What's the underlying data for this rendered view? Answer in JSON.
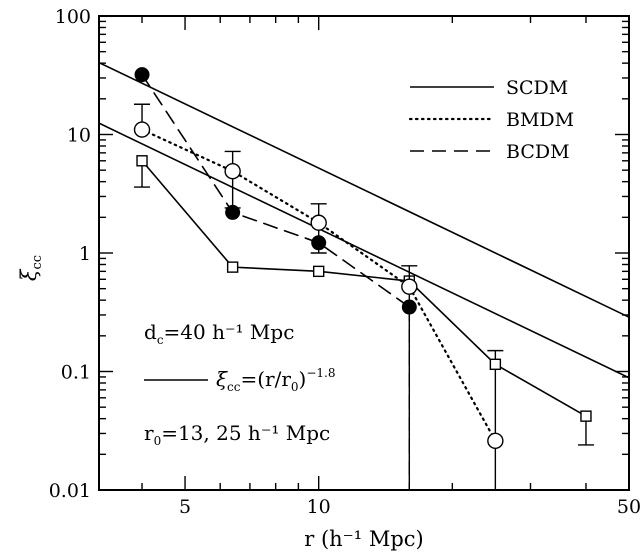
{
  "chart_data": {
    "type": "line",
    "xscale": "log",
    "yscale": "log",
    "xlim": [
      3.2,
      50
    ],
    "ylim": [
      0.01,
      100
    ],
    "xlabel": "r (h⁻¹ Mpc)",
    "ylabel_main": "ξ",
    "ylabel_sub": "cc",
    "xticks": [
      {
        "value": 5,
        "label": "5"
      },
      {
        "value": 10,
        "label": "10"
      },
      {
        "value": 50,
        "label": "50"
      }
    ],
    "yticks": [
      {
        "value": 0.01,
        "label": "0.01"
      },
      {
        "value": 0.1,
        "label": "0.1"
      },
      {
        "value": 1,
        "label": "1"
      },
      {
        "value": 10,
        "label": "10"
      },
      {
        "value": 100,
        "label": "100"
      }
    ],
    "legend": {
      "position": "top-right",
      "entries": [
        {
          "label": "SCDM",
          "style": "solid"
        },
        {
          "label": "BMDM",
          "style": "dotted"
        },
        {
          "label": "BCDM",
          "style": "dashed"
        }
      ]
    },
    "annotations": {
      "dc_line": "d",
      "dc_sub": "c",
      "dc_rest": "=40 h⁻¹ Mpc",
      "fit_xi": "ξ",
      "fit_sub": "cc",
      "fit_rest": "=(r/r",
      "fit_r0sub": "0",
      "fit_close": ")",
      "fit_exp": "−1.8",
      "r0_main": "r",
      "r0_sub": "0",
      "r0_rest": "=13, 25 h⁻¹ Mpc"
    },
    "powerlaws": [
      {
        "r0": 25,
        "slope": -1.8
      },
      {
        "r0": 13,
        "slope": -1.8
      }
    ],
    "series": [
      {
        "name": "SCDM",
        "line": "solid",
        "marker": "open-square",
        "x": [
          4.0,
          6.4,
          10.0,
          16.0,
          25.0,
          40.0
        ],
        "y": [
          6.0,
          0.76,
          0.7,
          0.58,
          0.115,
          0.042
        ],
        "errlo": [
          3.6,
          null,
          null,
          null,
          0.01,
          0.024
        ],
        "errhi": [
          null,
          null,
          null,
          null,
          0.15,
          null
        ]
      },
      {
        "name": "BMDM",
        "line": "dotted",
        "marker": "open-circle",
        "x": [
          4.0,
          6.4,
          10.0,
          16.0,
          25.0
        ],
        "y": [
          11.0,
          4.9,
          1.8,
          0.52,
          0.026
        ],
        "errlo": [
          null,
          2.4,
          1.0,
          0.01,
          null
        ],
        "errhi": [
          18.0,
          7.2,
          2.6,
          0.78,
          null
        ]
      },
      {
        "name": "BCDM",
        "line": "dashed",
        "marker": "filled-circle",
        "x": [
          4.0,
          6.4,
          10.0,
          16.0
        ],
        "y": [
          32.0,
          2.2,
          1.22,
          0.35
        ],
        "errlo": [
          null,
          null,
          null,
          0.01
        ],
        "errhi": [
          null,
          null,
          null,
          null
        ]
      }
    ]
  }
}
